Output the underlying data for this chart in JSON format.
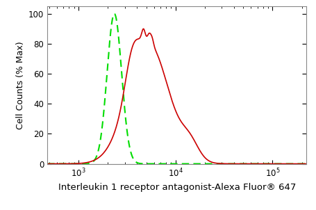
{
  "title": "",
  "xlabel": "Interleukin 1 receptor antagonist-Alexa Fluor® 647",
  "ylabel": "Cell Counts (% Max)",
  "ylim": [
    0,
    105
  ],
  "yticks": [
    0,
    20,
    40,
    60,
    80,
    100
  ],
  "background_color": "#ffffff",
  "plot_bg_color": "#ffffff",
  "green_color": "#00dd00",
  "red_color": "#cc0000",
  "green_peak_log": 3.37,
  "green_sigma_log": 0.075,
  "red_peak_log": 3.72,
  "red_sigma_log": 0.21,
  "xlabel_fontsize": 9.5,
  "ylabel_fontsize": 9,
  "tick_fontsize": 8.5,
  "linewidth_green": 1.5,
  "linewidth_red": 1.2
}
